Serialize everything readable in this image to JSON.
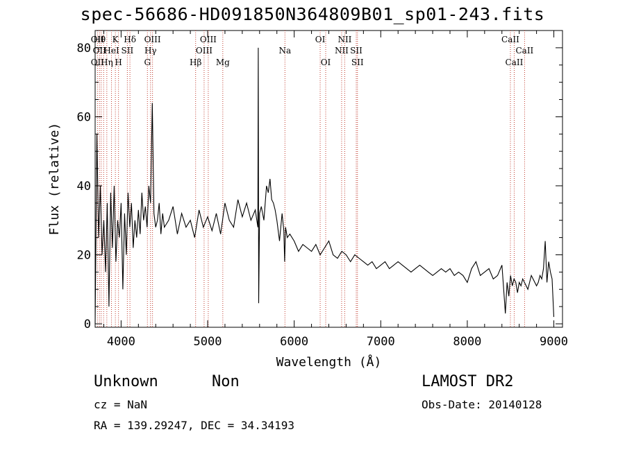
{
  "chart_data": {
    "type": "line",
    "title": "spec-56686-HD091850N364809B01_sp01-243.fits",
    "xlabel": "Wavelength (Å)",
    "ylabel": "Flux (relative)",
    "xlim": [
      3700,
      9100
    ],
    "ylim": [
      -1,
      85
    ],
    "xticks": [
      4000,
      5000,
      6000,
      7000,
      8000,
      9000
    ],
    "yticks": [
      0,
      20,
      40,
      60,
      80
    ],
    "grid": false,
    "series": [
      {
        "x": [
          3700,
          3720,
          3740,
          3760,
          3780,
          3800,
          3820,
          3840,
          3860,
          3880,
          3900,
          3920,
          3940,
          3960,
          3980,
          4000,
          4020,
          4040,
          4060,
          4080,
          4100,
          4120,
          4140,
          4160,
          4180,
          4200,
          4220,
          4240,
          4260,
          4280,
          4300,
          4320,
          4340,
          4360,
          4380,
          4400,
          4420,
          4440,
          4460,
          4480,
          4500,
          4550,
          4600,
          4650,
          4700,
          4750,
          4800,
          4850,
          4900,
          4950,
          5000,
          5050,
          5100,
          5150,
          5200,
          5250,
          5300,
          5350,
          5400,
          5450,
          5500,
          5550,
          5580,
          5585,
          5590,
          5600,
          5620,
          5650,
          5680,
          5700,
          5720,
          5740,
          5760,
          5780,
          5800,
          5830,
          5860,
          5880,
          5890,
          5900,
          5920,
          5950,
          6000,
          6050,
          6100,
          6150,
          6200,
          6250,
          6300,
          6350,
          6400,
          6450,
          6500,
          6550,
          6600,
          6650,
          6700,
          6750,
          6800,
          6850,
          6900,
          6950,
          7000,
          7050,
          7100,
          7150,
          7200,
          7250,
          7300,
          7350,
          7400,
          7450,
          7500,
          7550,
          7600,
          7650,
          7700,
          7750,
          7800,
          7850,
          7900,
          7950,
          8000,
          8050,
          8100,
          8150,
          8200,
          8250,
          8300,
          8350,
          8400,
          8420,
          8440,
          8460,
          8480,
          8500,
          8520,
          8540,
          8560,
          8580,
          8600,
          8620,
          8640,
          8660,
          8680,
          8700,
          8720,
          8740,
          8760,
          8780,
          8800,
          8820,
          8840,
          8860,
          8880,
          8900,
          8920,
          8940,
          8960,
          8980,
          9000
        ],
        "values": [
          0,
          55,
          25,
          40,
          20,
          30,
          15,
          35,
          5,
          38,
          22,
          40,
          18,
          30,
          25,
          35,
          10,
          32,
          20,
          38,
          28,
          35,
          22,
          30,
          25,
          33,
          26,
          38,
          30,
          34,
          28,
          40,
          35,
          64,
          32,
          28,
          30,
          35,
          26,
          32,
          28,
          30,
          34,
          26,
          32,
          28,
          30,
          25,
          33,
          28,
          31,
          27,
          32,
          26,
          35,
          30,
          28,
          36,
          31,
          35,
          30,
          33,
          28,
          80,
          6,
          32,
          34,
          30,
          40,
          38,
          42,
          36,
          35,
          33,
          30,
          24,
          32,
          27,
          18,
          28,
          25,
          26,
          24,
          21,
          23,
          22,
          21,
          23,
          20,
          22,
          24,
          20,
          19,
          21,
          20,
          18,
          20,
          19,
          18,
          17,
          18,
          16,
          17,
          18,
          16,
          17,
          18,
          17,
          16,
          15,
          16,
          17,
          16,
          15,
          14,
          15,
          16,
          15,
          16,
          14,
          15,
          14,
          12,
          16,
          18,
          14,
          15,
          16,
          13,
          14,
          17,
          10,
          3,
          12,
          8,
          14,
          11,
          13,
          12,
          9,
          12,
          11,
          13,
          12,
          11,
          10,
          12,
          14,
          13,
          12,
          11,
          12,
          14,
          13,
          16,
          24,
          12,
          18,
          15,
          13,
          2
        ]
      }
    ],
    "lines": {
      "tops": [
        {
          "w": 3727,
          "t": "OII"
        },
        {
          "w": 3750,
          "t": "Hθ"
        },
        {
          "w": 3934,
          "t": "K"
        },
        {
          "w": 4102,
          "t": "Hδ"
        },
        {
          "w": 4363,
          "t": "OIII"
        },
        {
          "w": 5007,
          "t": "OIII"
        },
        {
          "w": 6300,
          "t": "OI"
        },
        {
          "w": 6584,
          "t": "NII"
        },
        {
          "w": 8498,
          "t": "CaII"
        }
      ],
      "mids": [
        {
          "w": 3750,
          "t": "OII"
        },
        {
          "w": 3889,
          "t": "HeI"
        },
        {
          "w": 4072,
          "t": "SII"
        },
        {
          "w": 4340,
          "t": "Hγ"
        },
        {
          "w": 4959,
          "t": "OIII"
        },
        {
          "w": 5893,
          "t": "Na"
        },
        {
          "w": 6548,
          "t": "NII"
        },
        {
          "w": 6717,
          "t": "SII"
        },
        {
          "w": 8662,
          "t": "CaII"
        }
      ],
      "bots": [
        {
          "w": 3727,
          "t": "OII"
        },
        {
          "w": 3835,
          "t": "Hη"
        },
        {
          "w": 3970,
          "t": "H"
        },
        {
          "w": 4304,
          "t": "G"
        },
        {
          "w": 4861,
          "t": "Hβ"
        },
        {
          "w": 5175,
          "t": "Mg"
        },
        {
          "w": 6364,
          "t": "OI"
        },
        {
          "w": 6731,
          "t": "SII"
        },
        {
          "w": 8542,
          "t": "CaII"
        }
      ]
    },
    "line_positions": [
      3727,
      3750,
      3770,
      3798,
      3835,
      3889,
      3934,
      3970,
      4072,
      4102,
      4304,
      4340,
      4363,
      4861,
      4959,
      5007,
      5175,
      5893,
      6300,
      6364,
      6548,
      6584,
      6717,
      6731,
      8498,
      8542,
      8662
    ]
  },
  "info": {
    "object_class": "Unknown",
    "subclass": "Non",
    "survey": "LAMOST DR2",
    "cz": "cz = NaN",
    "obs_date": "Obs-Date: 20140128",
    "radec": "RA = 139.29247, DEC =  34.34193"
  }
}
